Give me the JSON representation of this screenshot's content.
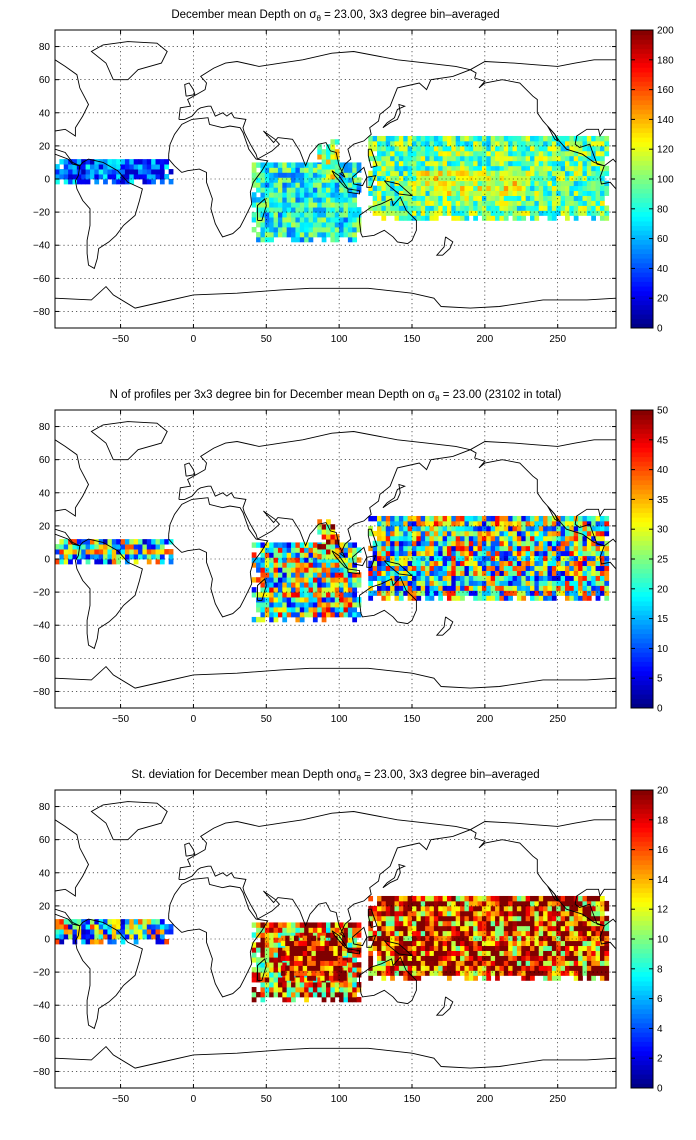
{
  "chart_data": [
    {
      "type": "heatmap",
      "title_parts": [
        "December mean Depth on σ",
        "θ",
        " = 23.00, 3x3 degree bin–averaged"
      ],
      "xlim": [
        -95,
        290
      ],
      "ylim": [
        -90,
        90
      ],
      "x_ticks": [
        -50,
        0,
        50,
        100,
        150,
        200,
        250
      ],
      "x_tick_labels": [
        "−50",
        "0",
        "50",
        "100",
        "150",
        "200",
        "250"
      ],
      "y_ticks": [
        80,
        60,
        40,
        20,
        0,
        -20,
        -40,
        -60,
        -80
      ],
      "y_tick_labels": [
        "80",
        "60",
        "40",
        "20",
        "0",
        "−20",
        "−40",
        "−60",
        "−80"
      ],
      "grid": true,
      "colormap": "jet",
      "clim": [
        0,
        200
      ],
      "colorbar_ticks": [
        0,
        20,
        40,
        60,
        80,
        100,
        120,
        140,
        160,
        180,
        200
      ],
      "colorbar_labels": [
        "0",
        "20",
        "40",
        "60",
        "80",
        "100",
        "120",
        "140",
        "160",
        "180",
        "200"
      ],
      "regions": [
        {
          "lon": [
            -95,
            -15
          ],
          "lat": [
            -3,
            12
          ],
          "value": 45
        },
        {
          "lon": [
            40,
            115
          ],
          "lat": [
            -38,
            10
          ],
          "value": 78
        },
        {
          "lon": [
            85,
            100
          ],
          "lat": [
            0,
            22
          ],
          "value": 110
        },
        {
          "lon": [
            120,
            285
          ],
          "lat": [
            -25,
            25
          ],
          "value": 95
        },
        {
          "lon": [
            150,
            230
          ],
          "lat": [
            -10,
            5
          ],
          "value": 140
        }
      ]
    },
    {
      "type": "heatmap",
      "title_parts": [
        "N of profiles per 3x3 degree bin for December mean Depth on σ",
        "θ",
        " = 23.00 (23102 in total)"
      ],
      "xlim": [
        -95,
        290
      ],
      "ylim": [
        -90,
        90
      ],
      "x_ticks": [
        -50,
        0,
        50,
        100,
        150,
        200,
        250
      ],
      "x_tick_labels": [
        "−50",
        "0",
        "50",
        "100",
        "150",
        "200",
        "250"
      ],
      "y_ticks": [
        80,
        60,
        40,
        20,
        0,
        -20,
        -40,
        -60,
        -80
      ],
      "y_tick_labels": [
        "80",
        "60",
        "40",
        "20",
        "0",
        "−20",
        "−40",
        "−60",
        "−80"
      ],
      "grid": true,
      "colormap": "jet",
      "clim": [
        0,
        50
      ],
      "colorbar_ticks": [
        0,
        5,
        10,
        15,
        20,
        25,
        30,
        35,
        40,
        45,
        50
      ],
      "colorbar_labels": [
        "0",
        "5",
        "10",
        "15",
        "20",
        "25",
        "30",
        "35",
        "40",
        "45",
        "50"
      ],
      "total_profiles": 23102,
      "regions": [
        {
          "lon": [
            -95,
            -15
          ],
          "lat": [
            -3,
            12
          ],
          "value": 22
        },
        {
          "lon": [
            40,
            115
          ],
          "lat": [
            -38,
            10
          ],
          "value": 25
        },
        {
          "lon": [
            85,
            100
          ],
          "lat": [
            0,
            22
          ],
          "value": 40
        },
        {
          "lon": [
            120,
            285
          ],
          "lat": [
            -25,
            25
          ],
          "value": 24
        }
      ]
    },
    {
      "type": "heatmap",
      "title_parts": [
        "St. deviation for December mean Depth onσ",
        "θ",
        " = 23.00, 3x3 degree bin–averaged"
      ],
      "xlim": [
        -95,
        290
      ],
      "ylim": [
        -90,
        90
      ],
      "x_ticks": [
        -50,
        0,
        50,
        100,
        150,
        200,
        250
      ],
      "x_tick_labels": [
        "−50",
        "0",
        "50",
        "100",
        "150",
        "200",
        "250"
      ],
      "y_ticks": [
        80,
        60,
        40,
        20,
        0,
        -20,
        -40,
        -60,
        -80
      ],
      "y_tick_labels": [
        "80",
        "60",
        "40",
        "20",
        "0",
        "−20",
        "−40",
        "−60",
        "−80"
      ],
      "grid": true,
      "colormap": "jet",
      "clim": [
        0,
        20
      ],
      "colorbar_ticks": [
        0,
        2,
        4,
        6,
        8,
        10,
        12,
        14,
        16,
        18,
        20
      ],
      "colorbar_labels": [
        "0",
        "2",
        "4",
        "6",
        "8",
        "10",
        "12",
        "14",
        "16",
        "18",
        "20"
      ],
      "regions": [
        {
          "lon": [
            -95,
            -15
          ],
          "lat": [
            -3,
            12
          ],
          "value": 9
        },
        {
          "lon": [
            40,
            115
          ],
          "lat": [
            -38,
            10
          ],
          "value": 15
        },
        {
          "lon": [
            60,
            105
          ],
          "lat": [
            -25,
            0
          ],
          "value": 19
        },
        {
          "lon": [
            120,
            285
          ],
          "lat": [
            -25,
            25
          ],
          "value": 17
        }
      ]
    }
  ]
}
